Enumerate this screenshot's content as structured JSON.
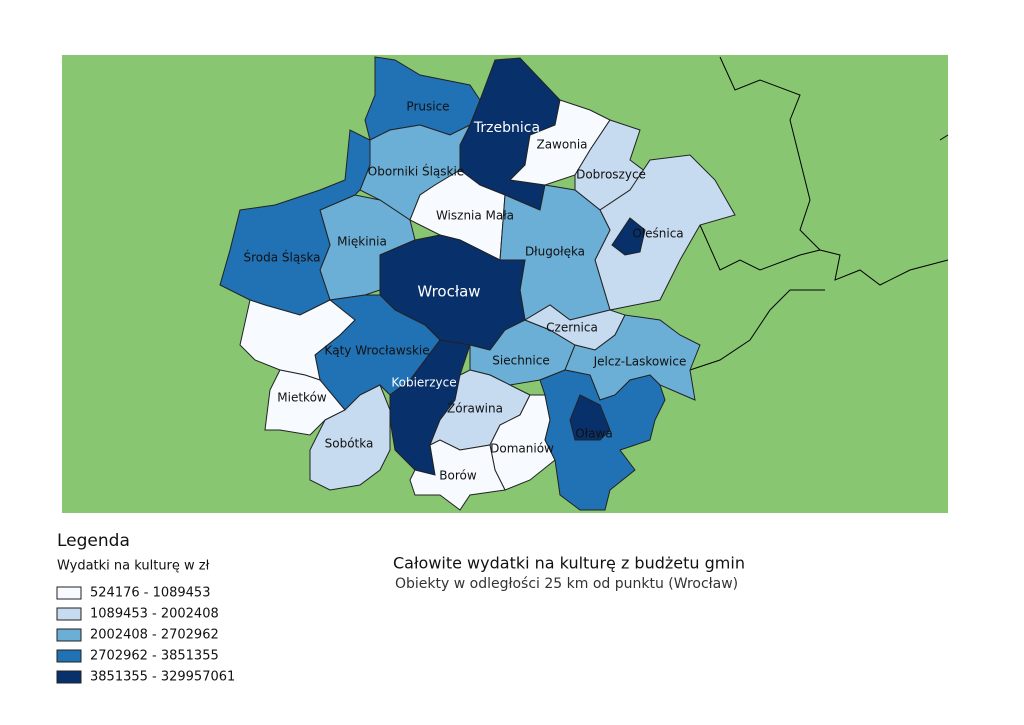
{
  "legend": {
    "title": "Legenda",
    "subtitle": "Wydatki na kulturę w zł",
    "classes": [
      {
        "label": "524176 - 1089453",
        "color": "#f7fbff"
      },
      {
        "label": "1089453 - 2002408",
        "color": "#c6dbef"
      },
      {
        "label": "2002408 - 2702962",
        "color": "#6baed6"
      },
      {
        "label": "2702962 - 3851355",
        "color": "#2171b5"
      },
      {
        "label": "3851355 - 329957061",
        "color": "#08306b"
      }
    ]
  },
  "title": "Całowite wydatki na kulturę z budżetu gmin",
  "subtitle": "Obiekty w odległości 25 km od punktu (Wrocław)",
  "regions": [
    {
      "label": "Prusice"
    },
    {
      "label": "Trzebnica"
    },
    {
      "label": "Zawonia"
    },
    {
      "label": "Dobroszyce"
    },
    {
      "label": "Oborniki Śląskie"
    },
    {
      "label": "Oleśnica"
    },
    {
      "label": "Wisznia Mała"
    },
    {
      "label": "Miękinia"
    },
    {
      "label": "Długołęka"
    },
    {
      "label": "Środa Śląska"
    },
    {
      "label": "Wrocław"
    },
    {
      "label": "Czernica"
    },
    {
      "label": "Kąty Wrocławskie"
    },
    {
      "label": "Siechnice"
    },
    {
      "label": "Jelcz-Laskowice"
    },
    {
      "label": "Kobierzyce"
    },
    {
      "label": "Mietków"
    },
    {
      "label": "Żórawina"
    },
    {
      "label": "Oława"
    },
    {
      "label": "Sobótka"
    },
    {
      "label": "Domaniów"
    },
    {
      "label": "Borów"
    }
  ]
}
